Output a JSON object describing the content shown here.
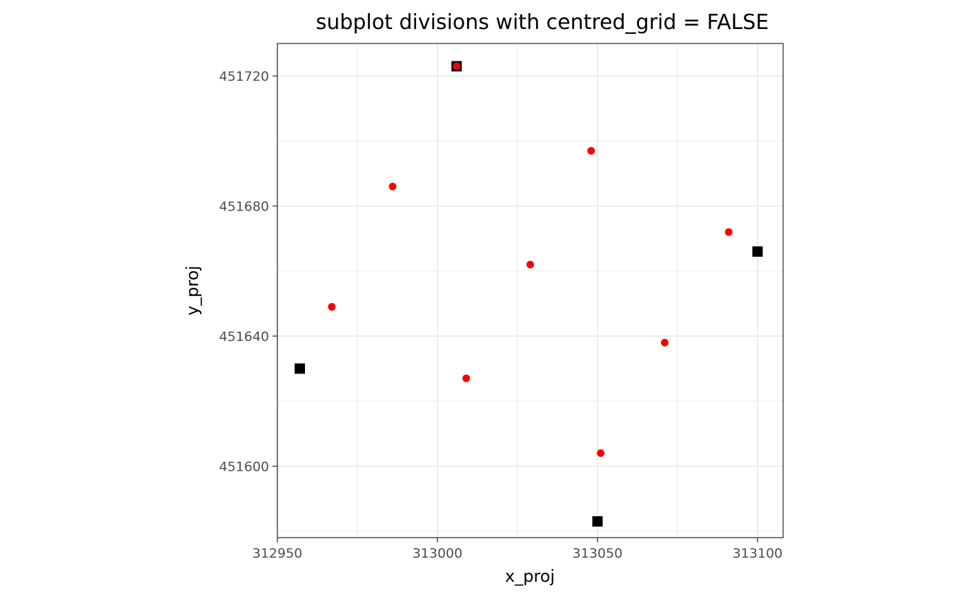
{
  "chart_data": {
    "type": "scatter",
    "title": "subplot divisions with centred_grid = FALSE",
    "xlabel": "x_proj",
    "ylabel": "y_proj",
    "xlim": [
      312950,
      313108
    ],
    "ylim": [
      451578,
      451730
    ],
    "x_ticks": [
      312950,
      313000,
      313050,
      313100
    ],
    "x_tick_labels": [
      "312950",
      "313000",
      "313050",
      "313100"
    ],
    "y_ticks": [
      451600,
      451640,
      451680,
      451720
    ],
    "y_tick_labels": [
      "451600",
      "451640",
      "451680",
      "451720"
    ],
    "x_minor_ticks": [
      312975,
      313025,
      313075
    ],
    "y_minor_ticks": [
      451580,
      451620,
      451660,
      451700
    ],
    "grid": true,
    "legend": "none",
    "series": [
      {
        "marker": "square",
        "color": "#000000",
        "points": [
          {
            "x": 313006,
            "y": 451723
          },
          {
            "x": 313100,
            "y": 451666
          },
          {
            "x": 312957,
            "y": 451630
          },
          {
            "x": 313050,
            "y": 451583
          }
        ]
      },
      {
        "marker": "circle",
        "color": "#ff0000",
        "points": [
          {
            "x": 313006,
            "y": 451723
          },
          {
            "x": 313048,
            "y": 451697
          },
          {
            "x": 312986,
            "y": 451686
          },
          {
            "x": 313091,
            "y": 451672
          },
          {
            "x": 313029,
            "y": 451662
          },
          {
            "x": 312967,
            "y": 451649
          },
          {
            "x": 313071,
            "y": 451638
          },
          {
            "x": 313009,
            "y": 451627
          },
          {
            "x": 313051,
            "y": 451604
          }
        ]
      }
    ]
  }
}
